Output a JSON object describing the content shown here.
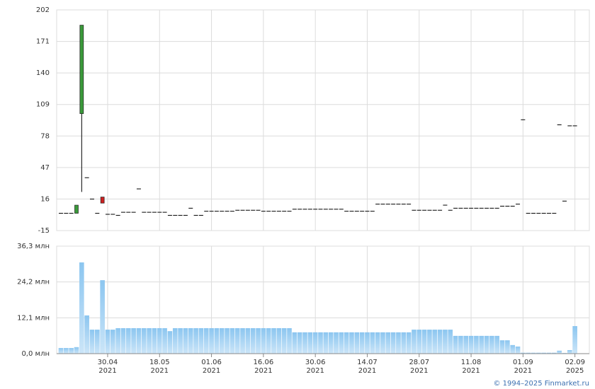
{
  "chart_data": [
    {
      "type": "candlestick",
      "categories": [
        null,
        null,
        null,
        null,
        null,
        null,
        null,
        null,
        null,
        "30.04\n2021",
        null,
        null,
        null,
        null,
        null,
        null,
        null,
        null,
        null,
        "18.05\n2021",
        null,
        null,
        null,
        null,
        null,
        null,
        null,
        null,
        null,
        "01.06\n2021",
        null,
        null,
        null,
        null,
        null,
        null,
        null,
        null,
        null,
        "16.06\n2021",
        null,
        null,
        null,
        null,
        null,
        null,
        null,
        null,
        null,
        "30.06\n2021",
        null,
        null,
        null,
        null,
        null,
        null,
        null,
        null,
        null,
        "14.07\n2021",
        null,
        null,
        null,
        null,
        null,
        null,
        null,
        null,
        null,
        "28.07\n2021",
        null,
        null,
        null,
        null,
        null,
        null,
        null,
        null,
        null,
        "11.08\n2021",
        null,
        null,
        null,
        null,
        null,
        null,
        null,
        null,
        null,
        "01.09\n2021",
        null,
        null,
        null,
        null,
        null,
        null,
        null,
        null,
        null,
        "02.09\n2025"
      ],
      "open": [
        2,
        2,
        2,
        2,
        100,
        37,
        16,
        2,
        18,
        1,
        1,
        0,
        3,
        3,
        3,
        26,
        3,
        3,
        3,
        3,
        3,
        0,
        0,
        0,
        0,
        7,
        0,
        0,
        4,
        4,
        4,
        4,
        4,
        4,
        5,
        5,
        5,
        5,
        5,
        4,
        4,
        4,
        4,
        4,
        4,
        6,
        6,
        6,
        6,
        6,
        6,
        6,
        6,
        6,
        6,
        4,
        4,
        4,
        4,
        4,
        4,
        11,
        11,
        11,
        11,
        11,
        11,
        11,
        5,
        5,
        5,
        5,
        5,
        5,
        10,
        5,
        7,
        7,
        7,
        7,
        7,
        7,
        7,
        7,
        7,
        9,
        9,
        9,
        11,
        94,
        2,
        2,
        2,
        2,
        2,
        2,
        89,
        14,
        88,
        88
      ],
      "high": [
        2,
        2,
        2,
        10,
        187,
        37,
        16,
        2,
        18,
        1,
        1,
        0,
        3,
        3,
        3,
        26,
        3,
        3,
        3,
        3,
        3,
        0,
        0,
        0,
        0,
        7,
        0,
        0,
        4,
        4,
        4,
        4,
        4,
        4,
        5,
        5,
        5,
        5,
        5,
        4,
        4,
        4,
        4,
        4,
        4,
        6,
        6,
        6,
        6,
        6,
        6,
        6,
        6,
        6,
        6,
        4,
        4,
        4,
        4,
        4,
        4,
        11,
        11,
        11,
        11,
        11,
        11,
        11,
        5,
        5,
        5,
        5,
        5,
        5,
        10,
        5,
        7,
        7,
        7,
        7,
        7,
        7,
        7,
        7,
        7,
        9,
        9,
        9,
        11,
        94,
        2,
        2,
        2,
        2,
        2,
        2,
        89,
        14,
        88,
        88
      ],
      "low": [
        2,
        2,
        2,
        2,
        23,
        37,
        16,
        2,
        12,
        1,
        1,
        0,
        3,
        3,
        3,
        26,
        3,
        3,
        3,
        3,
        3,
        0,
        0,
        0,
        0,
        7,
        0,
        0,
        4,
        4,
        4,
        4,
        4,
        4,
        5,
        5,
        5,
        5,
        5,
        4,
        4,
        4,
        4,
        4,
        4,
        6,
        6,
        6,
        6,
        6,
        6,
        6,
        6,
        6,
        6,
        4,
        4,
        4,
        4,
        4,
        4,
        11,
        11,
        11,
        11,
        11,
        11,
        11,
        5,
        5,
        5,
        5,
        5,
        5,
        10,
        5,
        7,
        7,
        7,
        7,
        7,
        7,
        7,
        7,
        7,
        9,
        9,
        9,
        11,
        94,
        2,
        2,
        2,
        2,
        2,
        2,
        89,
        14,
        88,
        88
      ],
      "close": [
        2,
        2,
        2,
        10,
        187,
        37,
        16,
        2,
        12,
        1,
        1,
        0,
        3,
        3,
        3,
        26,
        3,
        3,
        3,
        3,
        3,
        0,
        0,
        0,
        0,
        7,
        0,
        0,
        4,
        4,
        4,
        4,
        4,
        4,
        5,
        5,
        5,
        5,
        5,
        4,
        4,
        4,
        4,
        4,
        4,
        6,
        6,
        6,
        6,
        6,
        6,
        6,
        6,
        6,
        6,
        4,
        4,
        4,
        4,
        4,
        4,
        11,
        11,
        11,
        11,
        11,
        11,
        11,
        5,
        5,
        5,
        5,
        5,
        5,
        10,
        5,
        7,
        7,
        7,
        7,
        7,
        7,
        7,
        7,
        7,
        9,
        9,
        9,
        11,
        94,
        2,
        2,
        2,
        2,
        2,
        2,
        89,
        14,
        88,
        88
      ],
      "up_color": "#3a9a3a",
      "down_color": "#cc2020",
      "flat_color": "#000000",
      "ylim": [
        -15,
        202
      ],
      "yticks": [
        -15,
        16,
        47,
        78,
        109,
        140,
        171,
        202
      ],
      "grid": true
    },
    {
      "type": "bar",
      "values": [
        1.9,
        1.9,
        1.9,
        2.2,
        30.8,
        12.9,
        8.1,
        8.1,
        24.8,
        8.1,
        8.1,
        8.6,
        8.6,
        8.6,
        8.6,
        8.6,
        8.6,
        8.6,
        8.6,
        8.6,
        8.6,
        7.6,
        8.6,
        8.6,
        8.6,
        8.6,
        8.6,
        8.6,
        8.6,
        8.6,
        8.6,
        8.6,
        8.6,
        8.6,
        8.6,
        8.6,
        8.6,
        8.6,
        8.6,
        8.6,
        8.6,
        8.6,
        8.6,
        8.6,
        8.6,
        7.2,
        7.2,
        7.2,
        7.2,
        7.2,
        7.2,
        7.2,
        7.2,
        7.2,
        7.2,
        7.2,
        7.2,
        7.2,
        7.2,
        7.2,
        7.2,
        7.2,
        7.2,
        7.2,
        7.2,
        7.2,
        7.2,
        7.2,
        8.1,
        8.1,
        8.1,
        8.1,
        8.1,
        8.1,
        8.1,
        8.1,
        6.0,
        6.0,
        6.0,
        6.0,
        6.0,
        6.0,
        6.0,
        6.0,
        6.0,
        4.5,
        4.5,
        2.9,
        2.4,
        0.3,
        0.3,
        0.3,
        0.3,
        0.3,
        0.3,
        0.3,
        1.0,
        0.2,
        1.2,
        9.3
      ],
      "color": "#8cc6f0",
      "ylim": [
        0,
        36.3
      ],
      "yticks": [
        {
          "value": 0,
          "label": "0,0 млн"
        },
        {
          "value": 12.1,
          "label": "12,1 млн"
        },
        {
          "value": 24.2,
          "label": "24,2 млн"
        },
        {
          "value": 36.3,
          "label": "36,3 млн"
        }
      ],
      "grid": true
    }
  ],
  "footer": "© 1994–2025 Finmarket.ru"
}
